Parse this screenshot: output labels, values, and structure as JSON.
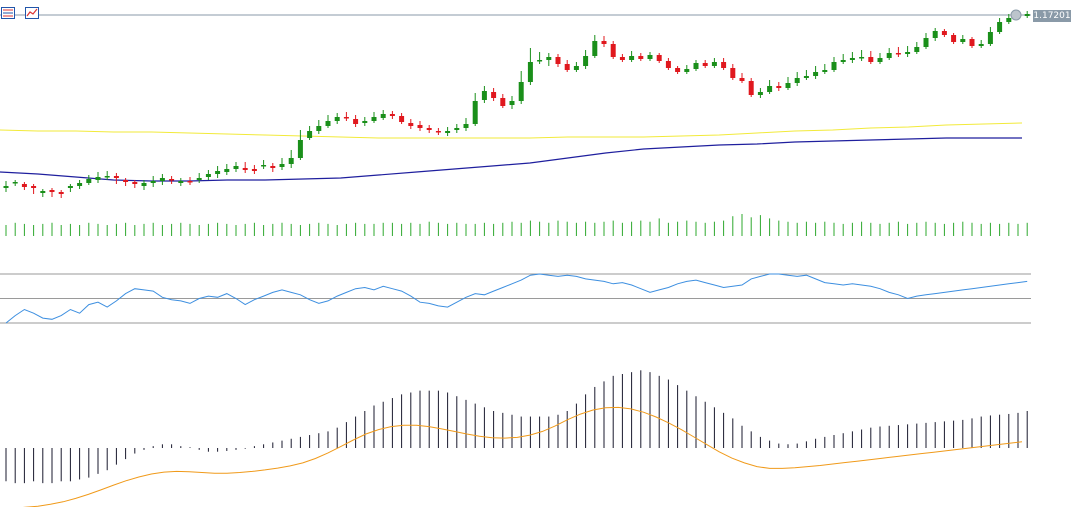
{
  "colors": {
    "bull": "#1a8f1a",
    "bear": "#e0181e",
    "ma_fast": "#1f1f9e",
    "ma_slow": "#f2ea3a",
    "volume": "#2ea82e",
    "rsi": "#3d8fe0",
    "levels": "#9a9a9a",
    "macd_hist": "#1a1a2e",
    "macd_signal": "#f09a1a",
    "price_tag_bg": "#8a9aa8"
  },
  "toolbar": {
    "icons": [
      "properties-list-icon",
      "chart-settings-icon"
    ]
  },
  "price_tag": "1.17201",
  "chart_data": [
    {
      "type": "candlestick",
      "panel": "price",
      "series": [
        {
          "name": "",
          "type": "line",
          "values": [
            172,
            174,
            177,
            180,
            181,
            181,
            180,
            180,
            179,
            178,
            175,
            172,
            169,
            166,
            163,
            158,
            153,
            149,
            147,
            145,
            144,
            142,
            141,
            140,
            139,
            138,
            138,
            138
          ]
        },
        {
          "name": "",
          "type": "line",
          "values": [
            130,
            131,
            131,
            132,
            132,
            133,
            134,
            135,
            136,
            137,
            138,
            138,
            138,
            138,
            138,
            137,
            137,
            137,
            136,
            135,
            133,
            131,
            130,
            128,
            127,
            125,
            124,
            123
          ]
        }
      ],
      "candles": [
        [
          188,
          186,
          192,
          181,
          1
        ],
        [
          183,
          182,
          186,
          180,
          1
        ],
        [
          187,
          184,
          190,
          182,
          0
        ],
        [
          186,
          188,
          194,
          184,
          0
        ],
        [
          193,
          191,
          197,
          189,
          1
        ],
        [
          190,
          192,
          197,
          188,
          0
        ],
        [
          192,
          194,
          198,
          190,
          0
        ],
        [
          188,
          186,
          192,
          184,
          1
        ],
        [
          186,
          183,
          189,
          180,
          1
        ],
        [
          183,
          179,
          185,
          175,
          1
        ],
        [
          180,
          177,
          183,
          172,
          1
        ],
        [
          177,
          176,
          180,
          171,
          1
        ],
        [
          176,
          178,
          184,
          173,
          0
        ],
        [
          180,
          182,
          186,
          178,
          0
        ],
        [
          182,
          184,
          188,
          180,
          0
        ],
        [
          186,
          183,
          190,
          180,
          1
        ],
        [
          183,
          181,
          187,
          176,
          1
        ],
        [
          181,
          178,
          185,
          174,
          1
        ],
        [
          179,
          180,
          184,
          176,
          0
        ],
        [
          183,
          181,
          186,
          178,
          1
        ],
        [
          181,
          182,
          185,
          177,
          0
        ],
        [
          180,
          178,
          183,
          173,
          1
        ],
        [
          177,
          174,
          180,
          170,
          1
        ],
        [
          174,
          171,
          178,
          166,
          1
        ],
        [
          172,
          169,
          175,
          164,
          1
        ],
        [
          169,
          166,
          172,
          162,
          1
        ],
        [
          168,
          170,
          173,
          162,
          0
        ],
        [
          169,
          171,
          174,
          165,
          0
        ],
        [
          166,
          165,
          169,
          160,
          1
        ],
        [
          166,
          168,
          172,
          163,
          0
        ],
        [
          167,
          164,
          170,
          158,
          1
        ],
        [
          164,
          158,
          168,
          150,
          1
        ],
        [
          158,
          140,
          160,
          130,
          1
        ],
        [
          138,
          131,
          140,
          126,
          1
        ],
        [
          131,
          126,
          134,
          120,
          1
        ],
        [
          126,
          121,
          128,
          115,
          1
        ],
        [
          121,
          117,
          124,
          113,
          1
        ],
        [
          117,
          118,
          121,
          112,
          0
        ],
        [
          119,
          124,
          127,
          115,
          0
        ],
        [
          123,
          121,
          126,
          117,
          1
        ],
        [
          121,
          117,
          123,
          112,
          1
        ],
        [
          118,
          114,
          120,
          110,
          1
        ],
        [
          114,
          116,
          119,
          111,
          0
        ],
        [
          116,
          122,
          124,
          113,
          0
        ],
        [
          123,
          126,
          129,
          119,
          0
        ],
        [
          125,
          128,
          131,
          121,
          0
        ],
        [
          128,
          130,
          133,
          125,
          0
        ],
        [
          131,
          132,
          135,
          128,
          0
        ],
        [
          133,
          131,
          136,
          127,
          1
        ],
        [
          130,
          128,
          133,
          124,
          1
        ],
        [
          128,
          124,
          131,
          118,
          1
        ],
        [
          124,
          101,
          126,
          93,
          1
        ],
        [
          100,
          91,
          103,
          86,
          1
        ],
        [
          92,
          98,
          101,
          88,
          0
        ],
        [
          98,
          106,
          108,
          94,
          0
        ],
        [
          105,
          101,
          109,
          96,
          1
        ],
        [
          101,
          82,
          104,
          71,
          1
        ],
        [
          82,
          62,
          85,
          48,
          1
        ],
        [
          61,
          60,
          64,
          52,
          1
        ],
        [
          60,
          57,
          66,
          53,
          1
        ],
        [
          57,
          64,
          67,
          54,
          0
        ],
        [
          64,
          70,
          72,
          60,
          0
        ],
        [
          70,
          66,
          72,
          62,
          1
        ],
        [
          66,
          56,
          69,
          50,
          1
        ],
        [
          56,
          41,
          58,
          35,
          1
        ],
        [
          41,
          44,
          47,
          36,
          0
        ],
        [
          44,
          57,
          59,
          41,
          0
        ],
        [
          57,
          60,
          62,
          54,
          0
        ],
        [
          60,
          56,
          62,
          51,
          1
        ],
        [
          56,
          59,
          61,
          53,
          0
        ],
        [
          59,
          55,
          61,
          52,
          1
        ],
        [
          55,
          61,
          63,
          53,
          0
        ],
        [
          61,
          68,
          70,
          58,
          0
        ],
        [
          68,
          72,
          74,
          66,
          0
        ],
        [
          72,
          69,
          74,
          65,
          1
        ],
        [
          69,
          63,
          71,
          60,
          1
        ],
        [
          63,
          66,
          68,
          60,
          0
        ],
        [
          66,
          62,
          68,
          58,
          1
        ],
        [
          62,
          68,
          70,
          58,
          0
        ],
        [
          68,
          78,
          80,
          64,
          0
        ],
        [
          78,
          81,
          83,
          73,
          0
        ],
        [
          81,
          95,
          97,
          78,
          0
        ],
        [
          95,
          92,
          98,
          88,
          1
        ],
        [
          92,
          86,
          94,
          80,
          1
        ],
        [
          86,
          88,
          91,
          82,
          0
        ],
        [
          88,
          83,
          90,
          77,
          1
        ],
        [
          83,
          78,
          86,
          72,
          1
        ],
        [
          78,
          76,
          80,
          70,
          1
        ],
        [
          76,
          72,
          79,
          66,
          1
        ],
        [
          72,
          70,
          74,
          64,
          1
        ],
        [
          70,
          62,
          72,
          57,
          1
        ],
        [
          62,
          60,
          64,
          54,
          1
        ],
        [
          60,
          58,
          63,
          52,
          1
        ],
        [
          58,
          57,
          61,
          50,
          1
        ],
        [
          57,
          62,
          64,
          51,
          0
        ],
        [
          62,
          58,
          64,
          53,
          1
        ],
        [
          58,
          53,
          60,
          48,
          1
        ],
        [
          53,
          54,
          57,
          47,
          0
        ],
        [
          54,
          52,
          57,
          46,
          1
        ],
        [
          52,
          47,
          54,
          42,
          1
        ],
        [
          47,
          38,
          49,
          33,
          1
        ],
        [
          38,
          31,
          41,
          28,
          1
        ],
        [
          31,
          35,
          37,
          29,
          0
        ],
        [
          35,
          42,
          44,
          33,
          0
        ],
        [
          42,
          39,
          44,
          35,
          1
        ],
        [
          39,
          46,
          48,
          37,
          0
        ],
        [
          46,
          44,
          48,
          40,
          1
        ],
        [
          44,
          32,
          46,
          27,
          1
        ],
        [
          32,
          22,
          34,
          18,
          1
        ],
        [
          22,
          18,
          24,
          14,
          1
        ],
        [
          18,
          16,
          20,
          12,
          1
        ],
        [
          16,
          14,
          18,
          11,
          1
        ]
      ]
    },
    {
      "type": "bar",
      "panel": "volume",
      "values": [
        0.5,
        0.6,
        0.55,
        0.5,
        0.55,
        0.6,
        0.5,
        0.55,
        0.5,
        0.6,
        0.55,
        0.5,
        0.55,
        0.6,
        0.5,
        0.55,
        0.6,
        0.5,
        0.55,
        0.6,
        0.55,
        0.5,
        0.55,
        0.6,
        0.55,
        0.5,
        0.55,
        0.6,
        0.5,
        0.55,
        0.6,
        0.55,
        0.5,
        0.55,
        0.6,
        0.55,
        0.5,
        0.55,
        0.6,
        0.55,
        0.55,
        0.6,
        0.6,
        0.55,
        0.6,
        0.55,
        0.65,
        0.6,
        0.55,
        0.6,
        0.55,
        0.55,
        0.6,
        0.55,
        0.6,
        0.65,
        0.6,
        0.7,
        0.65,
        0.6,
        0.7,
        0.65,
        0.6,
        0.65,
        0.6,
        0.65,
        0.7,
        0.6,
        0.65,
        0.7,
        0.65,
        0.8,
        0.6,
        0.65,
        0.7,
        0.65,
        0.6,
        0.65,
        0.7,
        0.9,
        1.0,
        0.85,
        0.95,
        0.8,
        0.7,
        0.65,
        0.6,
        0.65,
        0.6,
        0.65,
        0.6,
        0.55,
        0.6,
        0.65,
        0.6,
        0.55,
        0.6,
        0.65,
        0.55,
        0.6,
        0.65,
        0.6,
        0.55,
        0.6,
        0.65,
        0.6,
        0.55,
        0.6,
        0.55,
        0.6,
        0.55,
        0.6
      ]
    },
    {
      "type": "line",
      "panel": "rsi",
      "levels": [
        70,
        50,
        30
      ],
      "values": [
        30,
        36,
        41,
        38,
        34,
        33,
        36,
        41,
        38,
        45,
        47,
        43,
        48,
        54,
        58,
        57,
        56,
        51,
        49,
        48,
        46,
        50,
        52,
        51,
        54,
        50,
        45,
        49,
        52,
        55,
        57,
        55,
        53,
        49,
        46,
        48,
        52,
        55,
        58,
        59,
        57,
        60,
        58,
        56,
        52,
        47,
        46,
        44,
        43,
        47,
        51,
        54,
        53,
        56,
        59,
        62,
        65,
        69,
        70,
        69,
        68,
        69,
        68,
        66,
        65,
        64,
        62,
        63,
        61,
        58,
        55,
        57,
        59,
        62,
        64,
        65,
        63,
        61,
        59,
        60,
        61,
        66,
        68,
        70,
        70,
        69,
        68,
        69,
        66,
        63,
        62,
        61,
        62,
        61,
        60,
        58,
        55,
        53,
        50,
        52,
        53,
        54,
        55,
        56,
        57,
        58,
        59,
        60,
        61,
        62,
        63,
        64
      ]
    },
    {
      "type": "bar",
      "panel": "macd",
      "values": [
        -0.9,
        -0.95,
        -0.95,
        -0.9,
        -0.95,
        -0.95,
        -0.9,
        -0.9,
        -0.85,
        -0.8,
        -0.7,
        -0.6,
        -0.45,
        -0.3,
        -0.15,
        -0.05,
        0.05,
        0.1,
        0.1,
        0.05,
        0.02,
        -0.05,
        -0.1,
        -0.1,
        -0.08,
        -0.05,
        -0.02,
        0.05,
        0.1,
        0.15,
        0.2,
        0.25,
        0.3,
        0.35,
        0.4,
        0.45,
        0.55,
        0.7,
        0.85,
        1.0,
        1.15,
        1.25,
        1.35,
        1.45,
        1.5,
        1.55,
        1.55,
        1.55,
        1.5,
        1.4,
        1.3,
        1.2,
        1.1,
        1.0,
        0.95,
        0.9,
        0.85,
        0.85,
        0.85,
        0.85,
        0.9,
        1.0,
        1.2,
        1.45,
        1.65,
        1.8,
        1.95,
        2.0,
        2.05,
        2.1,
        2.05,
        1.95,
        1.85,
        1.7,
        1.55,
        1.4,
        1.25,
        1.1,
        0.95,
        0.8,
        0.6,
        0.45,
        0.3,
        0.2,
        0.12,
        0.1,
        0.12,
        0.18,
        0.25,
        0.3,
        0.35,
        0.4,
        0.45,
        0.5,
        0.55,
        0.58,
        0.6,
        0.62,
        0.64,
        0.66,
        0.68,
        0.7,
        0.72,
        0.74,
        0.76,
        0.8,
        0.85,
        0.88,
        0.9,
        0.92,
        0.95,
        1.0
      ],
      "series": [
        {
          "name": "",
          "values": [
            -0.95,
            -0.93,
            -0.9,
            -0.87,
            -0.82,
            -0.75,
            -0.66,
            -0.55,
            -0.43,
            -0.3,
            -0.18,
            -0.08,
            0.0,
            0.05,
            0.07,
            0.06,
            0.04,
            0.02,
            0.02,
            0.04,
            0.07,
            0.11,
            0.16,
            0.22,
            0.3,
            0.42,
            0.57,
            0.74,
            0.92,
            1.08,
            1.2,
            1.28,
            1.32,
            1.32,
            1.28,
            1.22,
            1.15,
            1.08,
            1.02,
            0.98,
            0.97,
            0.99,
            1.05,
            1.15,
            1.3,
            1.47,
            1.62,
            1.73,
            1.79,
            1.8,
            1.76,
            1.67,
            1.54,
            1.38,
            1.2,
            1.0,
            0.8,
            0.6,
            0.43,
            0.3,
            0.2,
            0.15,
            0.15,
            0.17,
            0.2,
            0.23,
            0.27,
            0.31,
            0.35,
            0.39,
            0.43,
            0.47,
            0.51,
            0.55,
            0.59,
            0.63,
            0.67,
            0.71,
            0.75,
            0.79,
            0.83,
            0.87
          ]
        }
      ]
    }
  ]
}
